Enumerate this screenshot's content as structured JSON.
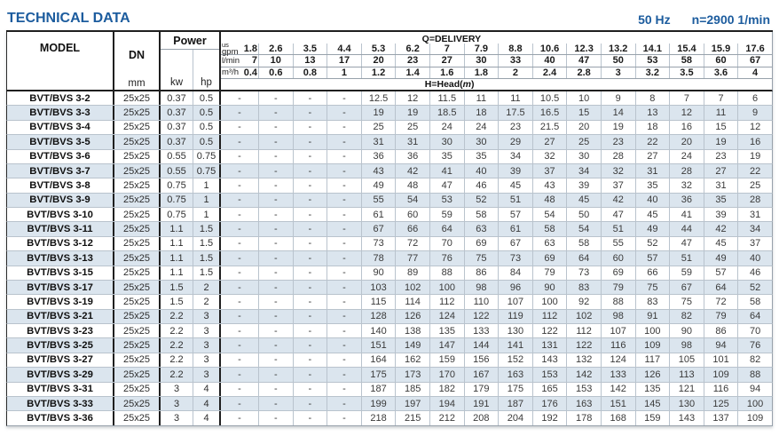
{
  "page": {
    "title": "TECHNICAL DATA",
    "frequency": "50 Hz",
    "speed": "n=2900 1/min"
  },
  "colors": {
    "accent": "#1c5c9e",
    "stripe": "#dbe5ee"
  },
  "table": {
    "columns": {
      "model_label": "MODEL",
      "dn_label": "DN",
      "dn_unit": "mm",
      "power_label": "Power",
      "kw_label": "kw",
      "hp_label": "hp"
    },
    "delivery": {
      "label": "Q=DELIVERY",
      "head_prefix": "H=Head(",
      "head_m": "m",
      "head_suffix": ")",
      "unit_rows": [
        {
          "unit_small": "us",
          "unit": "gpm",
          "values": [
            "1.8",
            "2.6",
            "3.5",
            "4.4",
            "5.3",
            "6.2",
            "7",
            "7.9",
            "8.8",
            "10.6",
            "12.3",
            "13.2",
            "14.1",
            "15.4",
            "15.9",
            "17.6"
          ]
        },
        {
          "unit": "l/min",
          "values": [
            "7",
            "10",
            "13",
            "17",
            "20",
            "23",
            "27",
            "30",
            "33",
            "40",
            "47",
            "50",
            "53",
            "58",
            "60",
            "67"
          ]
        },
        {
          "unit": "m³/h",
          "values": [
            "0.4",
            "0.6",
            "0.8",
            "1",
            "1.2",
            "1.4",
            "1.6",
            "1.8",
            "2",
            "2.4",
            "2.8",
            "3",
            "3.2",
            "3.5",
            "3.6",
            "4"
          ]
        }
      ]
    },
    "rows": [
      {
        "model": "BVT/BVS 3-2",
        "dn": "25x25",
        "kw": "0.37",
        "hp": "0.5",
        "head": [
          "-",
          "-",
          "-",
          "-",
          "12.5",
          "12",
          "11.5",
          "11",
          "11",
          "10.5",
          "10",
          "9",
          "8",
          "7",
          "7",
          "6"
        ]
      },
      {
        "model": "BVT/BVS 3-3",
        "dn": "25x25",
        "kw": "0.37",
        "hp": "0.5",
        "head": [
          "-",
          "-",
          "-",
          "-",
          "19",
          "19",
          "18.5",
          "18",
          "17.5",
          "16.5",
          "15",
          "14",
          "13",
          "12",
          "11",
          "9"
        ]
      },
      {
        "model": "BVT/BVS 3-4",
        "dn": "25x25",
        "kw": "0.37",
        "hp": "0.5",
        "head": [
          "-",
          "-",
          "-",
          "-",
          "25",
          "25",
          "24",
          "24",
          "23",
          "21.5",
          "20",
          "19",
          "18",
          "16",
          "15",
          "12"
        ]
      },
      {
        "model": "BVT/BVS 3-5",
        "dn": "25x25",
        "kw": "0.37",
        "hp": "0.5",
        "head": [
          "-",
          "-",
          "-",
          "-",
          "31",
          "31",
          "30",
          "30",
          "29",
          "27",
          "25",
          "23",
          "22",
          "20",
          "19",
          "16"
        ]
      },
      {
        "model": "BVT/BVS 3-6",
        "dn": "25x25",
        "kw": "0.55",
        "hp": "0.75",
        "head": [
          "-",
          "-",
          "-",
          "-",
          "36",
          "36",
          "35",
          "35",
          "34",
          "32",
          "30",
          "28",
          "27",
          "24",
          "23",
          "19"
        ]
      },
      {
        "model": "BVT/BVS 3-7",
        "dn": "25x25",
        "kw": "0.55",
        "hp": "0.75",
        "head": [
          "-",
          "-",
          "-",
          "-",
          "43",
          "42",
          "41",
          "40",
          "39",
          "37",
          "34",
          "32",
          "31",
          "28",
          "27",
          "22"
        ]
      },
      {
        "model": "BVT/BVS 3-8",
        "dn": "25x25",
        "kw": "0.75",
        "hp": "1",
        "head": [
          "-",
          "-",
          "-",
          "-",
          "49",
          "48",
          "47",
          "46",
          "45",
          "43",
          "39",
          "37",
          "35",
          "32",
          "31",
          "25"
        ]
      },
      {
        "model": "BVT/BVS 3-9",
        "dn": "25x25",
        "kw": "0.75",
        "hp": "1",
        "head": [
          "-",
          "-",
          "-",
          "-",
          "55",
          "54",
          "53",
          "52",
          "51",
          "48",
          "45",
          "42",
          "40",
          "36",
          "35",
          "28"
        ]
      },
      {
        "model": "BVT/BVS 3-10",
        "dn": "25x25",
        "kw": "0.75",
        "hp": "1",
        "head": [
          "-",
          "-",
          "-",
          "-",
          "61",
          "60",
          "59",
          "58",
          "57",
          "54",
          "50",
          "47",
          "45",
          "41",
          "39",
          "31"
        ]
      },
      {
        "model": "BVT/BVS 3-11",
        "dn": "25x25",
        "kw": "1.1",
        "hp": "1.5",
        "head": [
          "-",
          "-",
          "-",
          "-",
          "67",
          "66",
          "64",
          "63",
          "61",
          "58",
          "54",
          "51",
          "49",
          "44",
          "42",
          "34"
        ]
      },
      {
        "model": "BVT/BVS 3-12",
        "dn": "25x25",
        "kw": "1.1",
        "hp": "1.5",
        "head": [
          "-",
          "-",
          "-",
          "-",
          "73",
          "72",
          "70",
          "69",
          "67",
          "63",
          "58",
          "55",
          "52",
          "47",
          "45",
          "37"
        ]
      },
      {
        "model": "BVT/BVS 3-13",
        "dn": "25x25",
        "kw": "1.1",
        "hp": "1.5",
        "head": [
          "-",
          "-",
          "-",
          "-",
          "78",
          "77",
          "76",
          "75",
          "73",
          "69",
          "64",
          "60",
          "57",
          "51",
          "49",
          "40"
        ]
      },
      {
        "model": "BVT/BVS 3-15",
        "dn": "25x25",
        "kw": "1.1",
        "hp": "1.5",
        "head": [
          "-",
          "-",
          "-",
          "-",
          "90",
          "89",
          "88",
          "86",
          "84",
          "79",
          "73",
          "69",
          "66",
          "59",
          "57",
          "46"
        ]
      },
      {
        "model": "BVT/BVS 3-17",
        "dn": "25x25",
        "kw": "1.5",
        "hp": "2",
        "head": [
          "-",
          "-",
          "-",
          "-",
          "103",
          "102",
          "100",
          "98",
          "96",
          "90",
          "83",
          "79",
          "75",
          "67",
          "64",
          "52"
        ]
      },
      {
        "model": "BVT/BVS 3-19",
        "dn": "25x25",
        "kw": "1.5",
        "hp": "2",
        "head": [
          "-",
          "-",
          "-",
          "-",
          "115",
          "114",
          "112",
          "110",
          "107",
          "100",
          "92",
          "88",
          "83",
          "75",
          "72",
          "58"
        ]
      },
      {
        "model": "BVT/BVS 3-21",
        "dn": "25x25",
        "kw": "2.2",
        "hp": "3",
        "head": [
          "-",
          "-",
          "-",
          "-",
          "128",
          "126",
          "124",
          "122",
          "119",
          "112",
          "102",
          "98",
          "91",
          "82",
          "79",
          "64"
        ]
      },
      {
        "model": "BVT/BVS 3-23",
        "dn": "25x25",
        "kw": "2.2",
        "hp": "3",
        "head": [
          "-",
          "-",
          "-",
          "-",
          "140",
          "138",
          "135",
          "133",
          "130",
          "122",
          "112",
          "107",
          "100",
          "90",
          "86",
          "70"
        ]
      },
      {
        "model": "BVT/BVS 3-25",
        "dn": "25x25",
        "kw": "2.2",
        "hp": "3",
        "head": [
          "-",
          "-",
          "-",
          "-",
          "151",
          "149",
          "147",
          "144",
          "141",
          "131",
          "122",
          "116",
          "109",
          "98",
          "94",
          "76"
        ]
      },
      {
        "model": "BVT/BVS 3-27",
        "dn": "25x25",
        "kw": "2.2",
        "hp": "3",
        "head": [
          "-",
          "-",
          "-",
          "-",
          "164",
          "162",
          "159",
          "156",
          "152",
          "143",
          "132",
          "124",
          "117",
          "105",
          "101",
          "82"
        ]
      },
      {
        "model": "BVT/BVS 3-29",
        "dn": "25x25",
        "kw": "2.2",
        "hp": "3",
        "head": [
          "-",
          "-",
          "-",
          "-",
          "175",
          "173",
          "170",
          "167",
          "163",
          "153",
          "142",
          "133",
          "126",
          "113",
          "109",
          "88"
        ]
      },
      {
        "model": "BVT/BVS 3-31",
        "dn": "25x25",
        "kw": "3",
        "hp": "4",
        "head": [
          "-",
          "-",
          "-",
          "-",
          "187",
          "185",
          "182",
          "179",
          "175",
          "165",
          "153",
          "142",
          "135",
          "121",
          "116",
          "94"
        ]
      },
      {
        "model": "BVT/BVS 3-33",
        "dn": "25x25",
        "kw": "3",
        "hp": "4",
        "head": [
          "-",
          "-",
          "-",
          "-",
          "199",
          "197",
          "194",
          "191",
          "187",
          "176",
          "163",
          "151",
          "145",
          "130",
          "125",
          "100"
        ]
      },
      {
        "model": "BVT/BVS 3-36",
        "dn": "25x25",
        "kw": "3",
        "hp": "4",
        "head": [
          "-",
          "-",
          "-",
          "-",
          "218",
          "215",
          "212",
          "208",
          "204",
          "192",
          "178",
          "168",
          "159",
          "143",
          "137",
          "109"
        ]
      }
    ]
  }
}
